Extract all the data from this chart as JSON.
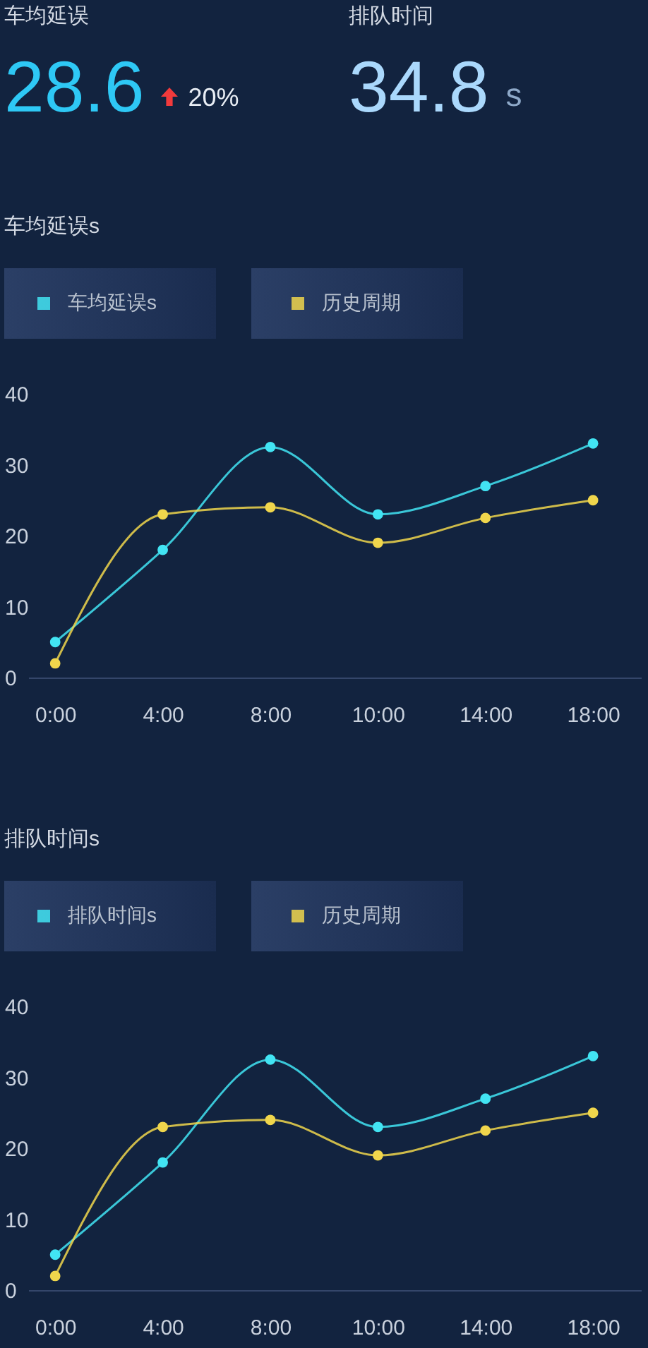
{
  "chart_data": [
    {
      "type": "other",
      "title": "车均延误",
      "annotations": [
        "28.6",
        "20%"
      ]
    },
    {
      "type": "other",
      "title": "排队时间",
      "annotations": [
        "34.8",
        "s"
      ]
    },
    {
      "type": "line",
      "title": "车均延误s",
      "categories": [
        "0:00",
        "4:00",
        "8:00",
        "10:00",
        "14:00",
        "18:00"
      ],
      "series": [
        {
          "name": "车均延误s",
          "color": "#42e4f3",
          "values": [
            5,
            18,
            32.5,
            23,
            27,
            33
          ]
        },
        {
          "name": "历史周期",
          "color": "#f0d64c",
          "values": [
            2,
            23,
            24,
            19,
            22.5,
            25
          ]
        }
      ],
      "ylim": [
        0,
        40
      ],
      "yticks": [
        0,
        10,
        20,
        30,
        40
      ],
      "legend": "top left",
      "marker": "circle",
      "line_style": "solid"
    },
    {
      "type": "line",
      "title": "排队时间s",
      "categories": [
        "0:00",
        "4:00",
        "8:00",
        "10:00",
        "14:00",
        "18:00"
      ],
      "series": [
        {
          "name": "排队时间s",
          "color": "#42e4f3",
          "values": [
            5,
            18,
            32.5,
            23,
            27,
            33
          ]
        },
        {
          "name": "历史周期",
          "color": "#f0d64c",
          "values": [
            2,
            23,
            24,
            19,
            22.5,
            25
          ]
        }
      ],
      "ylim": [
        0,
        40
      ],
      "yticks": [
        0,
        10,
        20,
        30,
        40
      ],
      "legend": "top left",
      "marker": "circle",
      "line_style": "solid"
    }
  ]
}
